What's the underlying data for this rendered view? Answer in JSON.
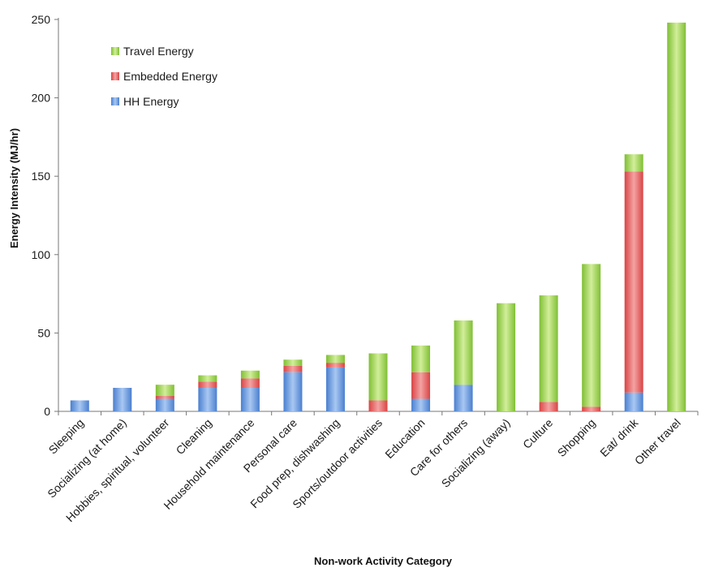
{
  "chart_data": {
    "type": "bar",
    "stacked": true,
    "title": "",
    "xlabel": "Non-work Activity  Category",
    "ylabel": "Energy Intensity (MJ/hr)",
    "ylim": [
      0,
      250
    ],
    "yticks": [
      0,
      50,
      100,
      150,
      200,
      250
    ],
    "grid": false,
    "legend_position": "top-left",
    "categories": [
      "Sleeping",
      "Socializing (at home)",
      "Hobbies, spiritual, volunteer",
      "Cleaning",
      "Household maintenance",
      "Personal care",
      "Food prep, dishwashing",
      "Sports/outdoor activities",
      "Education",
      "Care for others",
      "Socializing (away)",
      "Culture",
      "Shopping",
      "Eat/ drink",
      "Other travel"
    ],
    "series": [
      {
        "name": "HH Energy",
        "color": "#5b8fd9",
        "values": [
          7,
          15,
          8,
          15,
          15,
          25,
          28,
          0,
          8,
          17,
          0,
          0,
          0,
          12,
          0
        ]
      },
      {
        "name": "Embedded Energy",
        "color": "#e05a5a",
        "values": [
          0,
          0,
          2,
          4,
          6,
          4,
          3,
          7,
          17,
          0,
          0,
          6,
          3,
          141,
          0
        ]
      },
      {
        "name": "Travel Energy",
        "color": "#8cc640",
        "values": [
          0,
          0,
          7,
          4,
          5,
          4,
          5,
          30,
          17,
          41,
          69,
          68,
          91,
          11,
          248
        ]
      }
    ],
    "legend_order": [
      "Travel Energy",
      "Embedded Energy",
      "HH Energy"
    ]
  }
}
